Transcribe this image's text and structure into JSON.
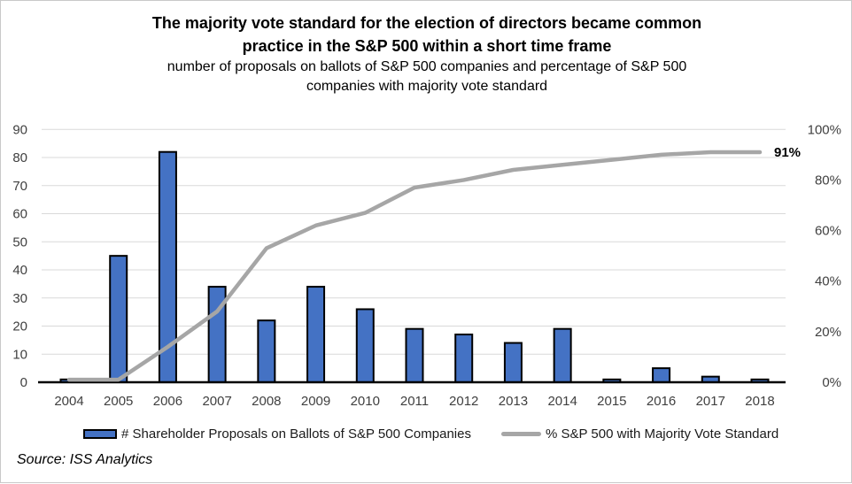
{
  "header": {
    "title_lines": [
      "The majority vote standard for the election of directors became common",
      "practice in the S&P 500 within a short time frame"
    ],
    "subtitle_lines": [
      "number of proposals on ballots of S&P 500 companies and percentage of S&P 500",
      "companies with majority vote standard"
    ]
  },
  "legend": {
    "bar_label": "# Shareholder Proposals on Ballots of S&P 500 Companies",
    "line_label": "% S&P 500 with Majority Vote Standard"
  },
  "source": "Source: ISS Analytics",
  "colors": {
    "bar_fill": "#4472C4",
    "bar_border": "#000000",
    "line": "#A6A6A6",
    "gridline": "#D9D9D9",
    "axis_line": "#000000",
    "tick_text": "#404040",
    "annotation_text": "#000000"
  },
  "chart_data": {
    "type": "combo-bar-line",
    "categories": [
      "2004",
      "2005",
      "2006",
      "2007",
      "2008",
      "2009",
      "2010",
      "2011",
      "2012",
      "2013",
      "2014",
      "2015",
      "2016",
      "2017",
      "2018"
    ],
    "series": [
      {
        "name": "# Shareholder Proposals on Ballots of S&P 500 Companies",
        "type": "bar",
        "axis": "left",
        "values": [
          1,
          45,
          82,
          34,
          22,
          34,
          26,
          19,
          17,
          14,
          19,
          1,
          5,
          2,
          1
        ]
      },
      {
        "name": "% S&P 500 with Majority Vote Standard",
        "type": "line",
        "axis": "right",
        "values": [
          1,
          1,
          14,
          28,
          53,
          62,
          67,
          77,
          80,
          84,
          86,
          88,
          90,
          91,
          91
        ]
      }
    ],
    "left_axis": {
      "min": 0,
      "max": 90,
      "step": 10
    },
    "right_axis": {
      "min": 0,
      "max": 100,
      "step": 20,
      "suffix": "%"
    },
    "annotation": {
      "text": "91%",
      "series_index": 1,
      "point_index": 14
    },
    "gridlines": true,
    "legend_position": "bottom"
  }
}
